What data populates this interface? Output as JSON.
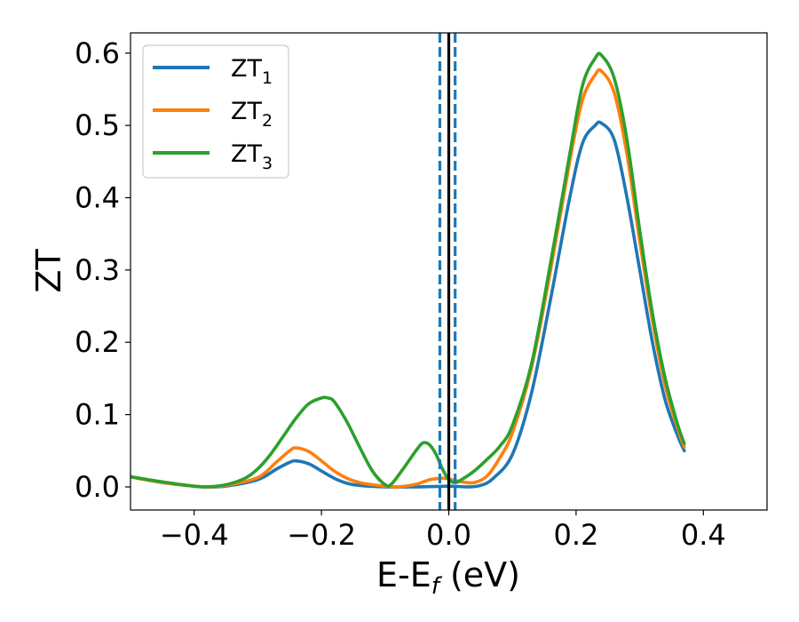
{
  "chart_data": {
    "type": "line",
    "xlabel": "E-E",
    "xlabel_sub": "f",
    "xlabel_unit": " (eV)",
    "ylabel": "ZT",
    "xlim": [
      -0.5,
      0.5
    ],
    "ylim": [
      -0.032,
      0.628
    ],
    "xticks": [
      -0.4,
      -0.2,
      0.0,
      0.2,
      0.4
    ],
    "xtick_labels": [
      "−0.4",
      "−0.2",
      "0.0",
      "0.2",
      "0.4"
    ],
    "yticks": [
      0.0,
      0.1,
      0.2,
      0.3,
      0.4,
      0.5,
      0.6
    ],
    "ytick_labels": [
      "0.0",
      "0.1",
      "0.2",
      "0.3",
      "0.4",
      "0.5",
      "0.6"
    ],
    "grid": false,
    "legend_position": "top-left",
    "series": [
      {
        "name": "ZT",
        "name_sub": "1",
        "color": "#1f77b4",
        "points": [
          [
            -0.5,
            0.014
          ],
          [
            -0.45,
            0.006
          ],
          [
            -0.4,
            0.001
          ],
          [
            -0.38,
            0.0
          ],
          [
            -0.35,
            0.001
          ],
          [
            -0.3,
            0.01
          ],
          [
            -0.27,
            0.025
          ],
          [
            -0.25,
            0.034
          ],
          [
            -0.24,
            0.036
          ],
          [
            -0.22,
            0.032
          ],
          [
            -0.2,
            0.022
          ],
          [
            -0.18,
            0.012
          ],
          [
            -0.16,
            0.005
          ],
          [
            -0.14,
            0.002
          ],
          [
            -0.1,
            0.0
          ],
          [
            -0.05,
            0.0
          ],
          [
            0.0,
            0.001
          ],
          [
            0.03,
            0.0
          ],
          [
            0.05,
            0.002
          ],
          [
            0.07,
            0.012
          ],
          [
            0.1,
            0.045
          ],
          [
            0.13,
            0.13
          ],
          [
            0.16,
            0.26
          ],
          [
            0.19,
            0.4
          ],
          [
            0.21,
            0.475
          ],
          [
            0.23,
            0.5
          ],
          [
            0.24,
            0.503
          ],
          [
            0.26,
            0.48
          ],
          [
            0.28,
            0.4
          ],
          [
            0.3,
            0.3
          ],
          [
            0.32,
            0.2
          ],
          [
            0.34,
            0.12
          ],
          [
            0.36,
            0.07
          ],
          [
            0.37,
            0.05
          ]
        ]
      },
      {
        "name": "ZT",
        "name_sub": "2",
        "color": "#ff7f0e",
        "points": [
          [
            -0.5,
            0.014
          ],
          [
            -0.45,
            0.006
          ],
          [
            -0.4,
            0.001
          ],
          [
            -0.38,
            0.0
          ],
          [
            -0.35,
            0.002
          ],
          [
            -0.3,
            0.013
          ],
          [
            -0.27,
            0.035
          ],
          [
            -0.25,
            0.05
          ],
          [
            -0.24,
            0.054
          ],
          [
            -0.22,
            0.049
          ],
          [
            -0.2,
            0.036
          ],
          [
            -0.18,
            0.022
          ],
          [
            -0.16,
            0.012
          ],
          [
            -0.14,
            0.006
          ],
          [
            -0.12,
            0.003
          ],
          [
            -0.1,
            0.001
          ],
          [
            -0.08,
            0.0
          ],
          [
            -0.05,
            0.004
          ],
          [
            -0.03,
            0.01
          ],
          [
            -0.01,
            0.012
          ],
          [
            0.0,
            0.011
          ],
          [
            0.02,
            0.007
          ],
          [
            0.04,
            0.006
          ],
          [
            0.06,
            0.015
          ],
          [
            0.08,
            0.04
          ],
          [
            0.1,
            0.075
          ],
          [
            0.13,
            0.165
          ],
          [
            0.16,
            0.3
          ],
          [
            0.19,
            0.45
          ],
          [
            0.21,
            0.535
          ],
          [
            0.23,
            0.57
          ],
          [
            0.24,
            0.575
          ],
          [
            0.26,
            0.545
          ],
          [
            0.28,
            0.46
          ],
          [
            0.3,
            0.34
          ],
          [
            0.32,
            0.23
          ],
          [
            0.34,
            0.14
          ],
          [
            0.36,
            0.08
          ],
          [
            0.37,
            0.055
          ]
        ]
      },
      {
        "name": "ZT",
        "name_sub": "3",
        "color": "#2ca02c",
        "points": [
          [
            -0.5,
            0.014
          ],
          [
            -0.45,
            0.007
          ],
          [
            -0.4,
            0.001
          ],
          [
            -0.38,
            0.0
          ],
          [
            -0.35,
            0.003
          ],
          [
            -0.32,
            0.012
          ],
          [
            -0.3,
            0.025
          ],
          [
            -0.28,
            0.045
          ],
          [
            -0.26,
            0.07
          ],
          [
            -0.24,
            0.095
          ],
          [
            -0.22,
            0.115
          ],
          [
            -0.2,
            0.123
          ],
          [
            -0.19,
            0.123
          ],
          [
            -0.18,
            0.118
          ],
          [
            -0.16,
            0.09
          ],
          [
            -0.14,
            0.055
          ],
          [
            -0.12,
            0.022
          ],
          [
            -0.1,
            0.003
          ],
          [
            -0.09,
            0.004
          ],
          [
            -0.07,
            0.027
          ],
          [
            -0.05,
            0.052
          ],
          [
            -0.04,
            0.061
          ],
          [
            -0.03,
            0.058
          ],
          [
            -0.02,
            0.045
          ],
          [
            -0.01,
            0.025
          ],
          [
            0.0,
            0.01
          ],
          [
            0.01,
            0.006
          ],
          [
            0.02,
            0.01
          ],
          [
            0.04,
            0.022
          ],
          [
            0.06,
            0.038
          ],
          [
            0.08,
            0.056
          ],
          [
            0.1,
            0.085
          ],
          [
            0.13,
            0.17
          ],
          [
            0.16,
            0.31
          ],
          [
            0.19,
            0.46
          ],
          [
            0.21,
            0.555
          ],
          [
            0.23,
            0.593
          ],
          [
            0.24,
            0.597
          ],
          [
            0.26,
            0.565
          ],
          [
            0.28,
            0.48
          ],
          [
            0.3,
            0.355
          ],
          [
            0.32,
            0.24
          ],
          [
            0.34,
            0.15
          ],
          [
            0.36,
            0.085
          ],
          [
            0.37,
            0.06
          ]
        ]
      }
    ],
    "vlines": [
      {
        "x": -0.014,
        "color": "#1f77b4",
        "style": "dashed"
      },
      {
        "x": 0.0,
        "color": "#000000",
        "style": "solid"
      },
      {
        "x": 0.01,
        "color": "#1f77b4",
        "style": "dashed"
      }
    ]
  }
}
